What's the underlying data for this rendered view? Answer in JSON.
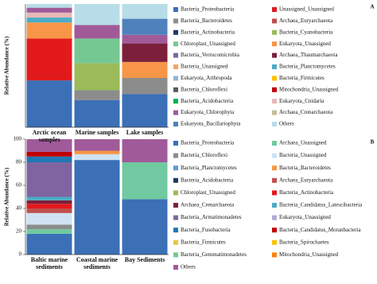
{
  "chart_data": [
    {
      "type": "stacked_bar",
      "panel_label": "A",
      "y_label": "Relative Abundance (%)",
      "categories": [
        "Arctic ocean samples",
        "Marine samples",
        "Lake samples"
      ],
      "ylim": [
        0,
        100
      ],
      "series": [
        {
          "name": "Bacteria_Proteobacteria",
          "color": "#3b6fb6",
          "values": [
            38,
            22,
            27
          ]
        },
        {
          "name": "Unassigned_Unassigned",
          "color": "#e31a1c",
          "values": [
            34,
            0,
            0
          ]
        },
        {
          "name": "Bacteria_Bacteroidetes",
          "color": "#8c8c8c",
          "values": [
            0,
            8,
            13
          ]
        },
        {
          "name": "Archaea_Euryarchaeota",
          "color": "#c0504d",
          "values": [
            0,
            0,
            0
          ]
        },
        {
          "name": "Bacteria_Actinobacteria",
          "color": "#1f3864",
          "values": [
            0,
            0,
            0
          ]
        },
        {
          "name": "Bacteria_Cyanobacteria",
          "color": "#9bbb59",
          "values": [
            0,
            22,
            0
          ]
        },
        {
          "name": "Chloroplast_Unassigned",
          "color": "#76c893",
          "values": [
            0,
            20,
            0
          ]
        },
        {
          "name": "Eukaryota_Unassigned",
          "color": "#f79646",
          "values": [
            13,
            0,
            13
          ]
        },
        {
          "name": "Bacteria_Verrucomicrobia",
          "color": "#8064a2",
          "values": [
            0,
            0,
            0
          ]
        },
        {
          "name": "Archaea_Thaumarchaeota",
          "color": "#7b1f3a",
          "values": [
            0,
            0,
            15
          ]
        },
        {
          "name": "Bacteria_Unassigned",
          "color": "#f4a460",
          "values": [
            0,
            0,
            0
          ]
        },
        {
          "name": "Bacteria_Planctomycetes",
          "color": "#4bacc6",
          "values": [
            4,
            0,
            0
          ]
        },
        {
          "name": "Eukaryota_Arthropoda",
          "color": "#95b3d7",
          "values": [
            0,
            0,
            0
          ]
        },
        {
          "name": "Bacteria_Firmicutes",
          "color": "#ffc000",
          "values": [
            0,
            0,
            0
          ]
        },
        {
          "name": "Bacteria_Chloroflexi",
          "color": "#5a5a5a",
          "values": [
            0,
            0,
            0
          ]
        },
        {
          "name": "Mitochondria_Unassigned",
          "color": "#c00000",
          "values": [
            0,
            0,
            0
          ]
        },
        {
          "name": "Bacteria_Acidobacteria",
          "color": "#00b050",
          "values": [
            0,
            0,
            0
          ]
        },
        {
          "name": "Eukaryota_Cnidaria",
          "color": "#e6b8b7",
          "values": [
            4,
            0,
            0
          ]
        },
        {
          "name": "Eukaryota_Chlorophyta",
          "color": "#a05a9a",
          "values": [
            4,
            11,
            7
          ]
        },
        {
          "name": "Archaea_Crenarchaeota",
          "color": "#c4bd97",
          "values": [
            0,
            0,
            0
          ]
        },
        {
          "name": "Eukaryota_Bacillariophyta",
          "color": "#4f81bd",
          "values": [
            0,
            0,
            13
          ]
        },
        {
          "name": "Others",
          "color": "#b7dee8",
          "values": [
            3,
            17,
            12
          ]
        }
      ]
    },
    {
      "type": "stacked_bar",
      "panel_label": "B",
      "y_label": "Relative Abundance (%)",
      "categories": [
        "Baltic marine sediments",
        "Coastal marine sediments",
        "Bay Sediments"
      ],
      "ylim": [
        0,
        100
      ],
      "yticks": [
        0,
        20,
        40,
        60,
        80,
        100
      ],
      "series": [
        {
          "name": "Bacteria_Proteobacteria",
          "color": "#3b6fb6",
          "values": [
            18,
            82,
            48
          ]
        },
        {
          "name": "Archaea_Unassigned",
          "color": "#70c9a0",
          "values": [
            4,
            0,
            32
          ]
        },
        {
          "name": "Bacteria_Chloroflexi",
          "color": "#8c8c8c",
          "values": [
            4,
            0,
            0
          ]
        },
        {
          "name": "Bacteria_Unassigned",
          "color": "#cfe2f3",
          "values": [
            10,
            5,
            0
          ]
        },
        {
          "name": "Bacteria_Planctomycetes",
          "color": "#5b9bd5",
          "values": [
            0,
            0,
            0
          ]
        },
        {
          "name": "Bacteria_Bacteroidetes",
          "color": "#f79646",
          "values": [
            0,
            3,
            0
          ]
        },
        {
          "name": "Bacteria_Acidobacteria",
          "color": "#1f3864",
          "values": [
            0,
            0,
            0
          ]
        },
        {
          "name": "Archaea_Euryarchaeota",
          "color": "#c0504d",
          "values": [
            4,
            0,
            0
          ]
        },
        {
          "name": "Chloroplast_Unassigned",
          "color": "#9bbb59",
          "values": [
            0,
            0,
            0
          ]
        },
        {
          "name": "Bacteria_Actinobacteria",
          "color": "#e31a1c",
          "values": [
            4,
            0,
            0
          ]
        },
        {
          "name": "Archaea_Crenarchaeota",
          "color": "#7b1f3a",
          "values": [
            3,
            0,
            0
          ]
        },
        {
          "name": "Bacteria_Candidatus_Latescibacteria",
          "color": "#4bacc6",
          "values": [
            3,
            0,
            0
          ]
        },
        {
          "name": "Bacteria_Armatimonadetes",
          "color": "#8064a2",
          "values": [
            30,
            0,
            0
          ]
        },
        {
          "name": "Eukaryota_Unassigned",
          "color": "#b4a7d6",
          "values": [
            0,
            0,
            0
          ]
        },
        {
          "name": "Bacteria_Fusobacteria",
          "color": "#1f78b4",
          "values": [
            5,
            0,
            0
          ]
        },
        {
          "name": "Bacteria_Candidatus_Moranbacteria",
          "color": "#c00000",
          "values": [
            4,
            0,
            0
          ]
        },
        {
          "name": "Bacteria_Firmicutes",
          "color": "#e8c547",
          "values": [
            0,
            0,
            0
          ]
        },
        {
          "name": "Bacteria_Spirochaetes",
          "color": "#ffc000",
          "values": [
            0,
            0,
            0
          ]
        },
        {
          "name": "Bacteria_Gemmatimonadetes",
          "color": "#76c893",
          "values": [
            0,
            0,
            0
          ]
        },
        {
          "name": "Mitochondria_Unassigned",
          "color": "#ff7f0e",
          "values": [
            0,
            0,
            0
          ]
        },
        {
          "name": "Others",
          "color": "#a05a9a",
          "values": [
            11,
            10,
            20
          ]
        }
      ]
    }
  ]
}
